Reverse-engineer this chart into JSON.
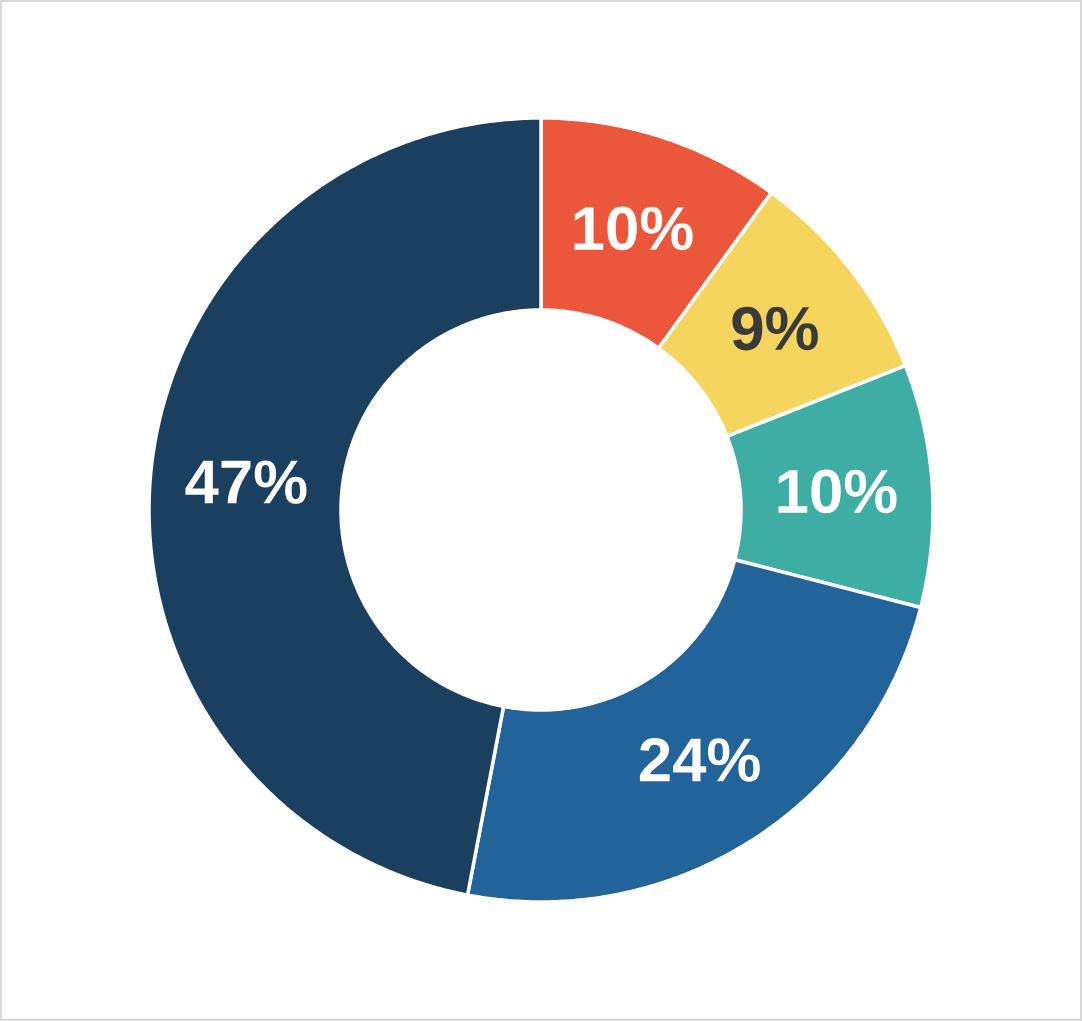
{
  "chart_data": {
    "type": "donut",
    "categories": [
      null,
      null,
      null,
      null,
      null
    ],
    "values": [
      10,
      9,
      10,
      24,
      47
    ],
    "colors": [
      "#ec573b",
      "#f5d55d",
      "#3eaea4",
      "#22649a",
      "#1b3f5f"
    ],
    "value_labels": [
      "10%",
      "9%",
      "10%",
      "24%",
      "47%"
    ]
  }
}
